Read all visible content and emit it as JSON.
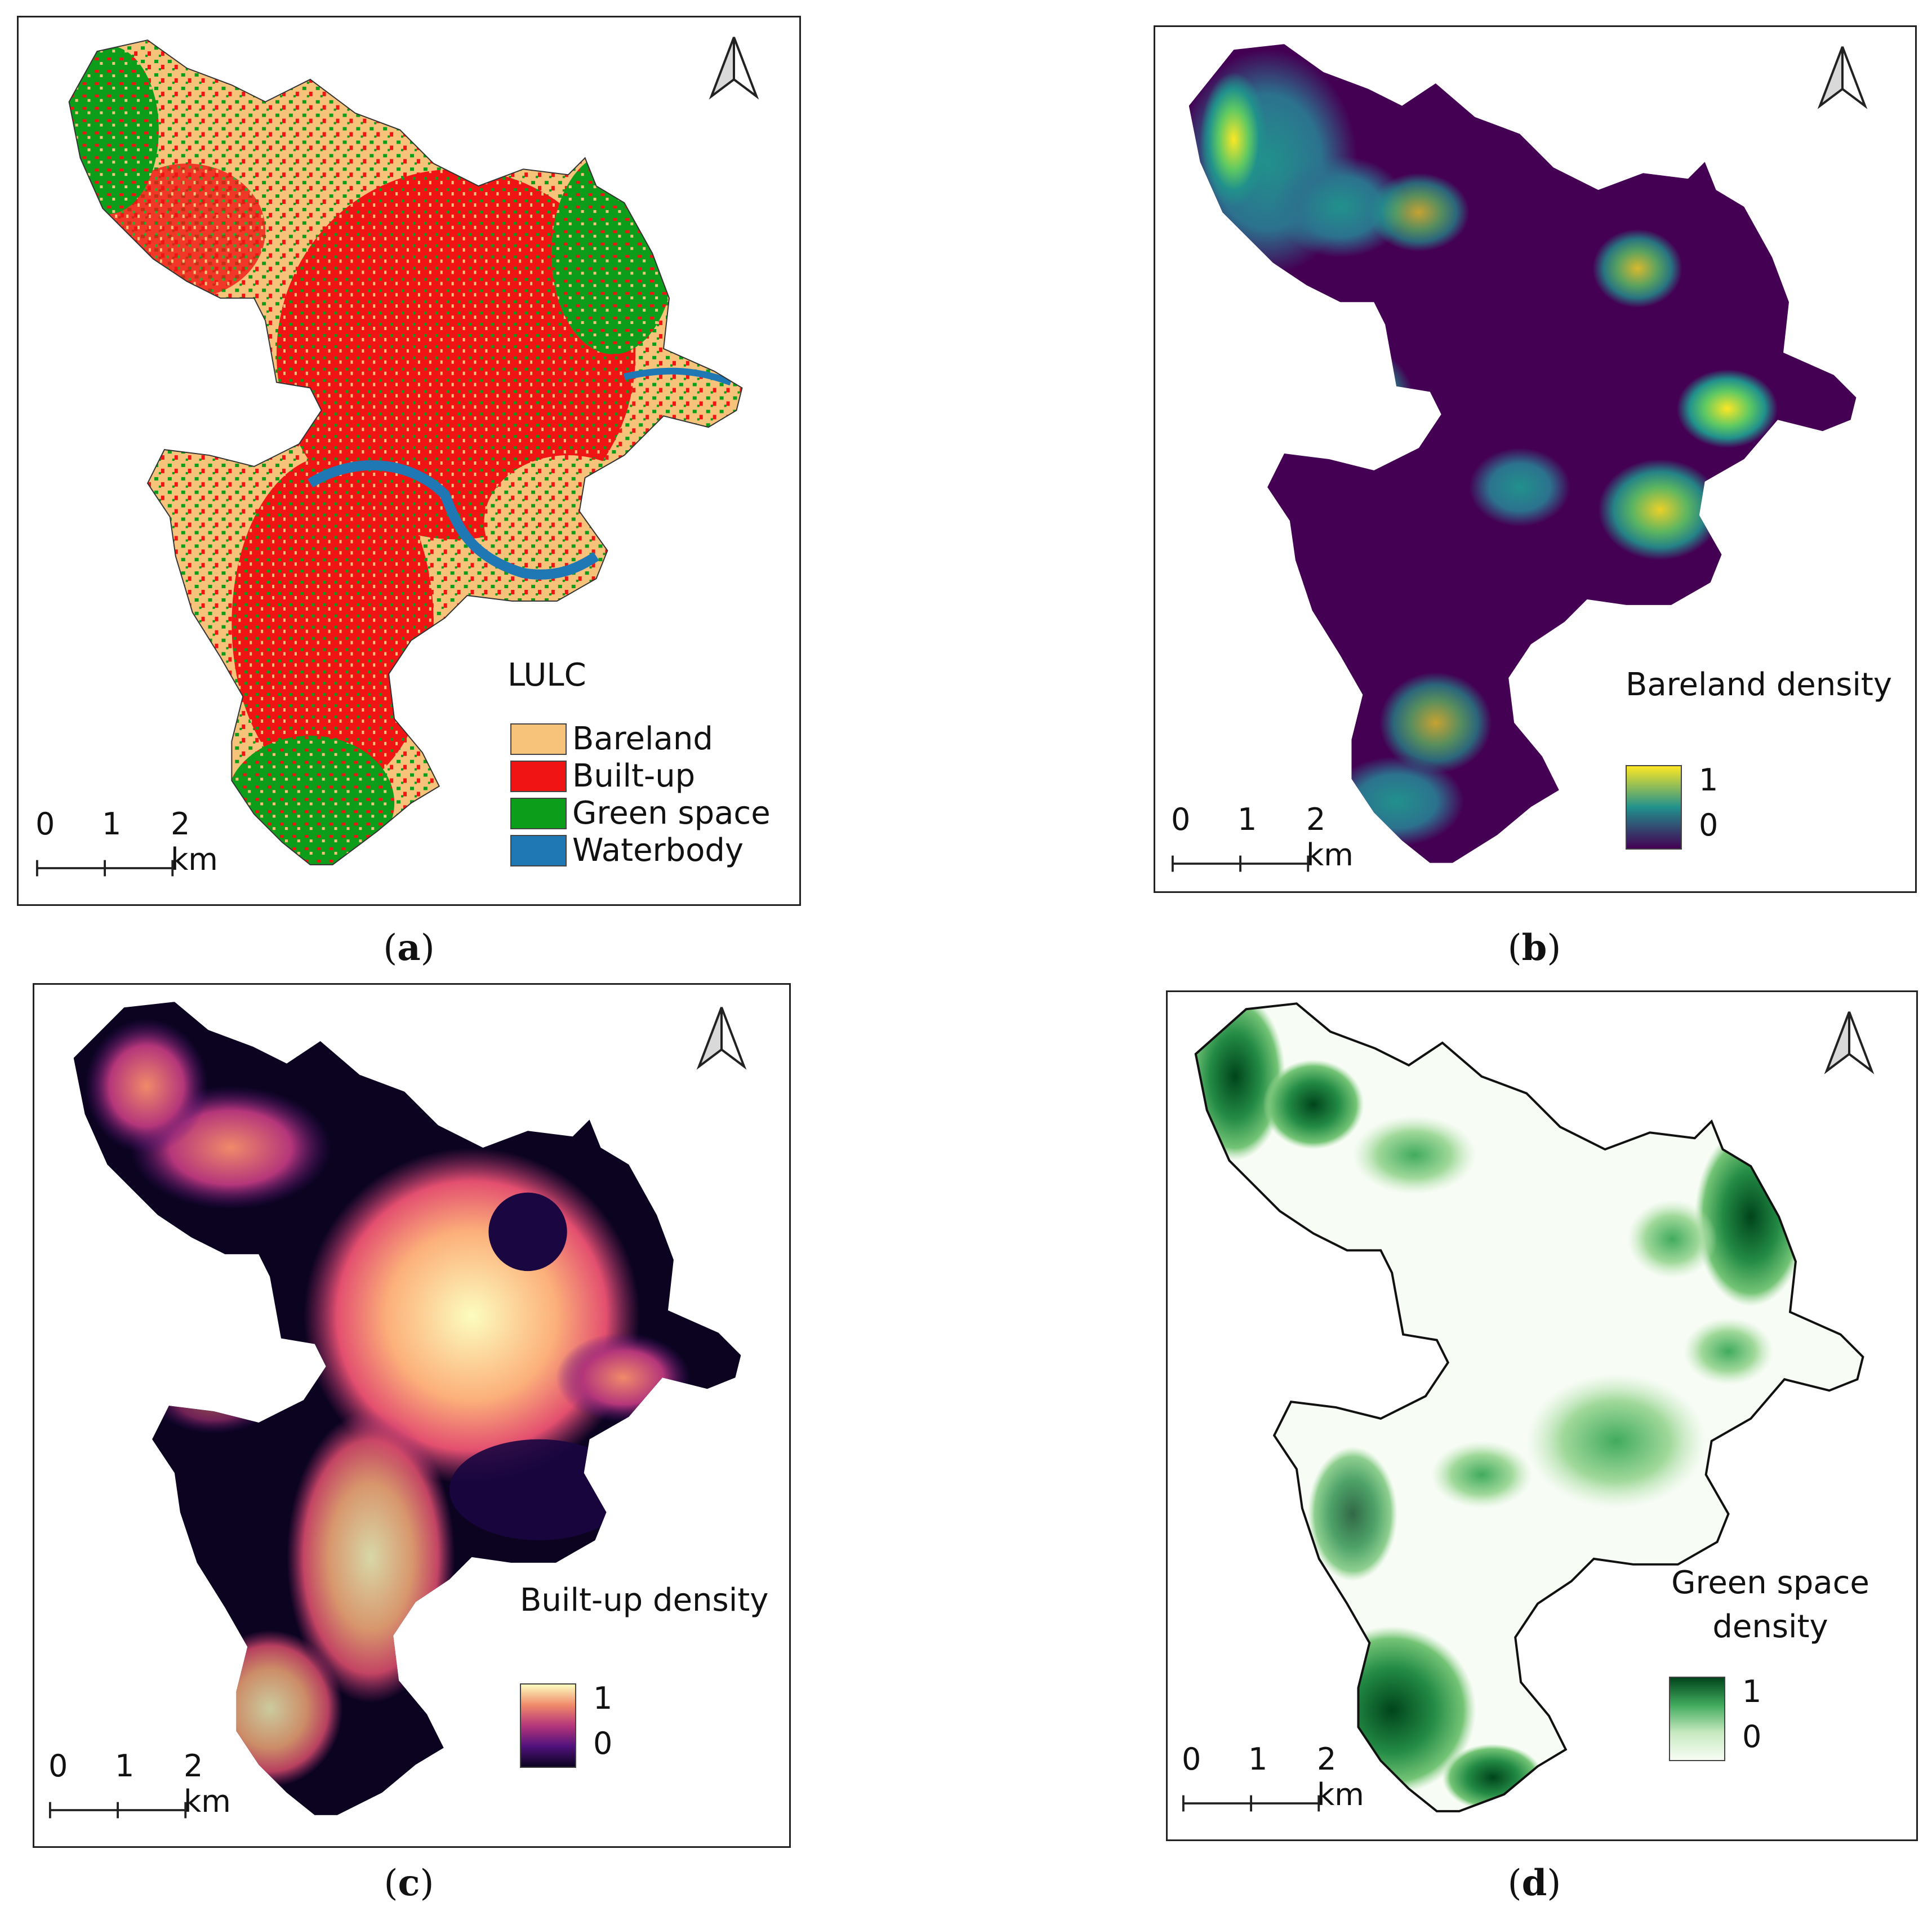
{
  "panels": [
    {
      "id": "a",
      "caption": "a",
      "legend_title": "LULC",
      "legend_items": [
        {
          "label": "Bareland",
          "color": "#f7c27a"
        },
        {
          "label": "Built-up",
          "color": "#f01414"
        },
        {
          "label": "Green space",
          "color": "#0c9e1a"
        },
        {
          "label": "Waterbody",
          "color": "#1f78b4"
        }
      ],
      "scale_labels": {
        "zero": "0",
        "one": "1",
        "two": "2 km"
      }
    },
    {
      "id": "b",
      "caption": "b",
      "legend_title": "Bareland density",
      "ramp_max": "1",
      "ramp_min": "0",
      "colors": {
        "low": "#440154",
        "mid": "#21918c",
        "high": "#fde725"
      },
      "scale_labels": {
        "zero": "0",
        "one": "1",
        "two": "2 km"
      }
    },
    {
      "id": "c",
      "caption": "c",
      "legend_title": "Built-up density",
      "ramp_max": "1",
      "ramp_min": "0",
      "colors": {
        "low": "#0b0320",
        "mid": "#b5367a",
        "high": "#fcfdbf"
      },
      "scale_labels": {
        "zero": "0",
        "one": "1",
        "two": "2 km"
      }
    },
    {
      "id": "d",
      "caption": "d",
      "legend_title_line1": "Green space",
      "legend_title_line2": "density",
      "ramp_max": "1",
      "ramp_min": "0",
      "colors": {
        "low": "#f7fcf5",
        "mid": "#74c476",
        "high": "#00441b"
      },
      "scale_labels": {
        "zero": "0",
        "one": "1",
        "two": "2 km"
      }
    }
  ],
  "north_arrow": "north-arrow-icon"
}
